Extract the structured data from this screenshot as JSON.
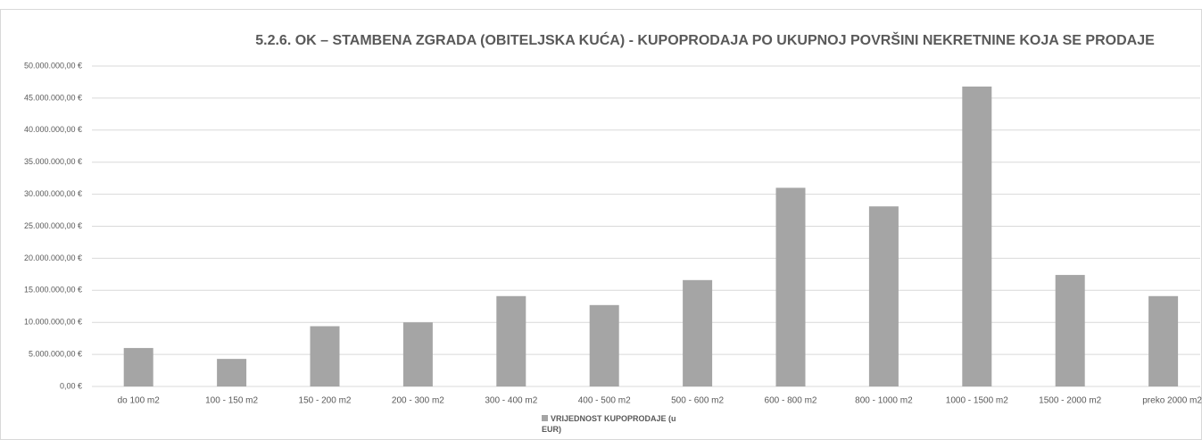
{
  "chart_data": {
    "type": "bar",
    "title": "5.2.6. OK – STAMBENA ZGRADA (OBITELJSKA KUĆA) - KUPOPRODAJA PO UKUPNOJ POVRŠINI NEKRETNINE KOJA SE PRODAJE",
    "categories": [
      "do 100 m2",
      "100 - 150 m2",
      "150 - 200 m2",
      "200 - 300 m2",
      "300 - 400 m2",
      "400 - 500 m2",
      "500 - 600 m2",
      "600 - 800 m2",
      "800 - 1000 m2",
      "1000 - 1500 m2",
      "1500 - 2000 m2",
      "preko 2000 m2"
    ],
    "series": [
      {
        "name": "VRIJEDNOST KUPOPRODAJE (u EUR)",
        "color": "#a5a5a5",
        "values": [
          6000000,
          4300000,
          9400000,
          10000000,
          14100000,
          12700000,
          16600000,
          31000000,
          28100000,
          46800000,
          17400000,
          14100000
        ]
      }
    ],
    "ylim": [
      0,
      50000000
    ],
    "yticks": [
      {
        "value": 0,
        "label": "0,00 €"
      },
      {
        "value": 5000000,
        "label": "5.000.000,00 €"
      },
      {
        "value": 10000000,
        "label": "10.000.000,00 €"
      },
      {
        "value": 15000000,
        "label": "15.000.000,00 €"
      },
      {
        "value": 20000000,
        "label": "20.000.000,00 €"
      },
      {
        "value": 25000000,
        "label": "25.000.000,00 €"
      },
      {
        "value": 30000000,
        "label": "30.000.000,00 €"
      },
      {
        "value": 35000000,
        "label": "35.000.000,00 €"
      },
      {
        "value": 40000000,
        "label": "40.000.000,00 €"
      },
      {
        "value": 45000000,
        "label": "45.000.000,00 €"
      },
      {
        "value": 50000000,
        "label": "50.000.000,00 €"
      }
    ],
    "grid": true,
    "legend": "bottom"
  }
}
